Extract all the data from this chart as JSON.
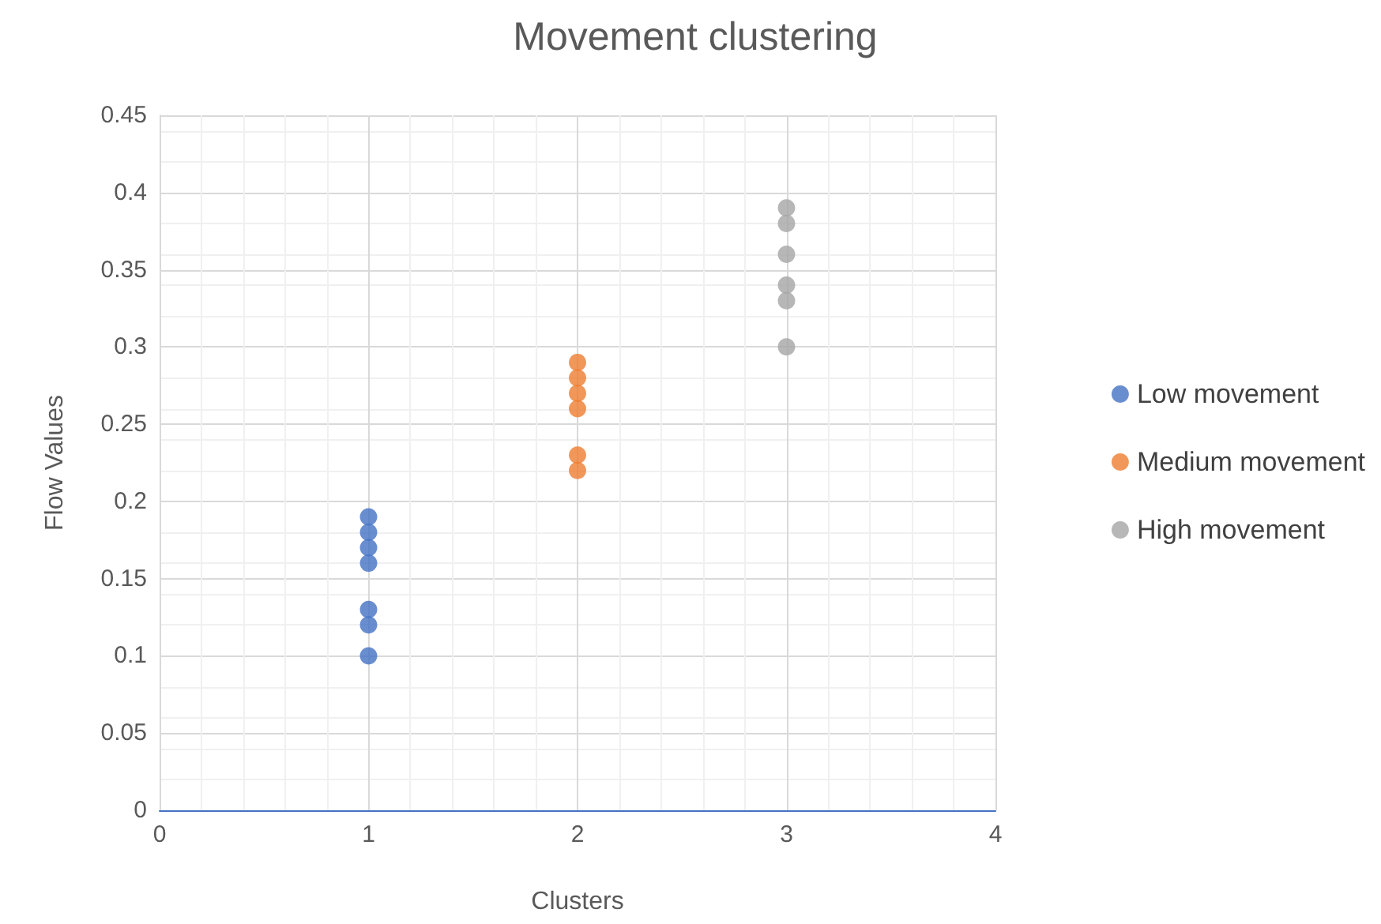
{
  "chart_data": {
    "type": "scatter",
    "title": "Movement clustering",
    "xlabel": "Clusters",
    "ylabel": "Flow Values",
    "xlim": [
      0,
      4
    ],
    "xticks": [
      0,
      1,
      2,
      3,
      4
    ],
    "ylim": [
      0,
      0.45
    ],
    "yticks": [
      0,
      0.05,
      0.1,
      0.15,
      0.2,
      0.25,
      0.3,
      0.35,
      0.4,
      0.45
    ],
    "grid": true,
    "legend": "right",
    "marker": "circle",
    "series": [
      {
        "name": "Low movement",
        "color": "#4472c4",
        "x": [
          1,
          1,
          1,
          1,
          1,
          1,
          1
        ],
        "values": [
          0.19,
          0.18,
          0.17,
          0.16,
          0.13,
          0.12,
          0.1
        ]
      },
      {
        "name": "Medium movement",
        "color": "#ed7d31",
        "x": [
          2,
          2,
          2,
          2,
          2,
          2
        ],
        "values": [
          0.29,
          0.28,
          0.27,
          0.26,
          0.23,
          0.22
        ]
      },
      {
        "name": "High movement",
        "color": "#a5a5a5",
        "x": [
          3,
          3,
          3,
          3,
          3,
          3
        ],
        "values": [
          0.39,
          0.38,
          0.36,
          0.34,
          0.33,
          0.3
        ]
      }
    ]
  }
}
